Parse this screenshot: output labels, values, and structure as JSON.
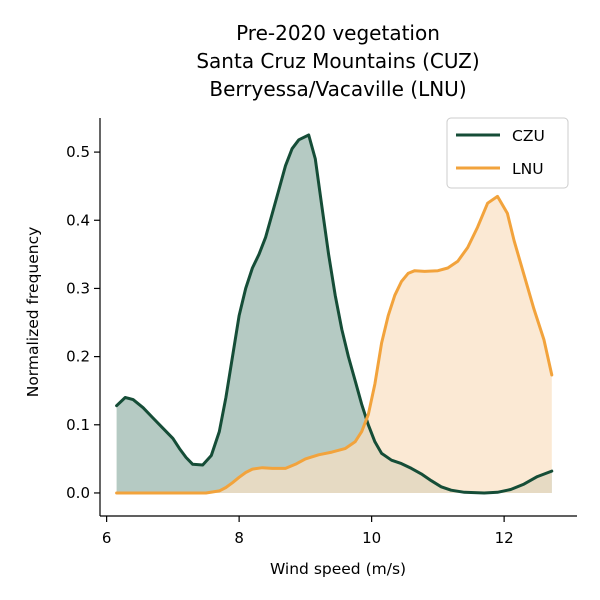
{
  "chart_data": {
    "type": "area",
    "title_lines": [
      "Pre-2020 vegetation",
      "Santa Cruz Mountains (CUZ)",
      "Berryessa/Vacaville (LNU)"
    ],
    "xlabel": "Wind speed (m/s)",
    "ylabel": "Normalized frequency",
    "xlim": [
      5.9,
      13.1
    ],
    "ylim": [
      -0.025,
      0.55
    ],
    "xticks": [
      6,
      8,
      10,
      12
    ],
    "xtick_labels": [
      "6",
      "8",
      "10",
      "12"
    ],
    "yticks": [
      0.0,
      0.1,
      0.2,
      0.3,
      0.4,
      0.5
    ],
    "ytick_labels": [
      "0.0",
      "0.1",
      "0.2",
      "0.3",
      "0.4",
      "0.5"
    ],
    "grid": false,
    "legend_position": "top-right",
    "series": [
      {
        "name": "CZU",
        "color": "#154d37",
        "fill": "#b5cac3",
        "points": [
          [
            6.15,
            0.128
          ],
          [
            6.28,
            0.14
          ],
          [
            6.4,
            0.137
          ],
          [
            6.55,
            0.125
          ],
          [
            6.7,
            0.11
          ],
          [
            6.85,
            0.095
          ],
          [
            7.0,
            0.08
          ],
          [
            7.1,
            0.065
          ],
          [
            7.2,
            0.052
          ],
          [
            7.3,
            0.042
          ],
          [
            7.45,
            0.041
          ],
          [
            7.58,
            0.055
          ],
          [
            7.7,
            0.09
          ],
          [
            7.8,
            0.14
          ],
          [
            7.9,
            0.2
          ],
          [
            8.0,
            0.26
          ],
          [
            8.1,
            0.3
          ],
          [
            8.2,
            0.33
          ],
          [
            8.3,
            0.35
          ],
          [
            8.4,
            0.375
          ],
          [
            8.5,
            0.41
          ],
          [
            8.6,
            0.445
          ],
          [
            8.7,
            0.48
          ],
          [
            8.8,
            0.505
          ],
          [
            8.9,
            0.518
          ],
          [
            9.05,
            0.525
          ],
          [
            9.15,
            0.49
          ],
          [
            9.25,
            0.42
          ],
          [
            9.35,
            0.35
          ],
          [
            9.45,
            0.29
          ],
          [
            9.55,
            0.24
          ],
          [
            9.65,
            0.2
          ],
          [
            9.75,
            0.165
          ],
          [
            9.85,
            0.13
          ],
          [
            9.95,
            0.1
          ],
          [
            10.05,
            0.075
          ],
          [
            10.15,
            0.058
          ],
          [
            10.3,
            0.048
          ],
          [
            10.45,
            0.043
          ],
          [
            10.6,
            0.036
          ],
          [
            10.75,
            0.028
          ],
          [
            10.9,
            0.018
          ],
          [
            11.05,
            0.009
          ],
          [
            11.2,
            0.004
          ],
          [
            11.4,
            0.001
          ],
          [
            11.7,
            0.0
          ],
          [
            11.9,
            0.001
          ],
          [
            12.1,
            0.005
          ],
          [
            12.3,
            0.013
          ],
          [
            12.5,
            0.024
          ],
          [
            12.72,
            0.032
          ]
        ]
      },
      {
        "name": "LNU",
        "color": "#f2a33c",
        "fill": "#fae1c3",
        "points": [
          [
            6.15,
            0.0
          ],
          [
            6.5,
            0.0
          ],
          [
            7.0,
            0.0
          ],
          [
            7.5,
            0.0
          ],
          [
            7.7,
            0.003
          ],
          [
            7.8,
            0.008
          ],
          [
            7.9,
            0.015
          ],
          [
            8.0,
            0.023
          ],
          [
            8.1,
            0.03
          ],
          [
            8.2,
            0.035
          ],
          [
            8.35,
            0.037
          ],
          [
            8.5,
            0.036
          ],
          [
            8.7,
            0.036
          ],
          [
            8.85,
            0.042
          ],
          [
            9.0,
            0.05
          ],
          [
            9.2,
            0.056
          ],
          [
            9.4,
            0.06
          ],
          [
            9.6,
            0.065
          ],
          [
            9.75,
            0.075
          ],
          [
            9.85,
            0.09
          ],
          [
            9.95,
            0.115
          ],
          [
            10.05,
            0.16
          ],
          [
            10.15,
            0.22
          ],
          [
            10.25,
            0.26
          ],
          [
            10.35,
            0.29
          ],
          [
            10.45,
            0.31
          ],
          [
            10.55,
            0.322
          ],
          [
            10.65,
            0.326
          ],
          [
            10.8,
            0.325
          ],
          [
            11.0,
            0.326
          ],
          [
            11.15,
            0.33
          ],
          [
            11.3,
            0.34
          ],
          [
            11.45,
            0.36
          ],
          [
            11.6,
            0.39
          ],
          [
            11.75,
            0.425
          ],
          [
            11.9,
            0.435
          ],
          [
            12.05,
            0.41
          ],
          [
            12.15,
            0.37
          ],
          [
            12.3,
            0.32
          ],
          [
            12.45,
            0.27
          ],
          [
            12.6,
            0.225
          ],
          [
            12.72,
            0.173
          ]
        ]
      }
    ]
  }
}
